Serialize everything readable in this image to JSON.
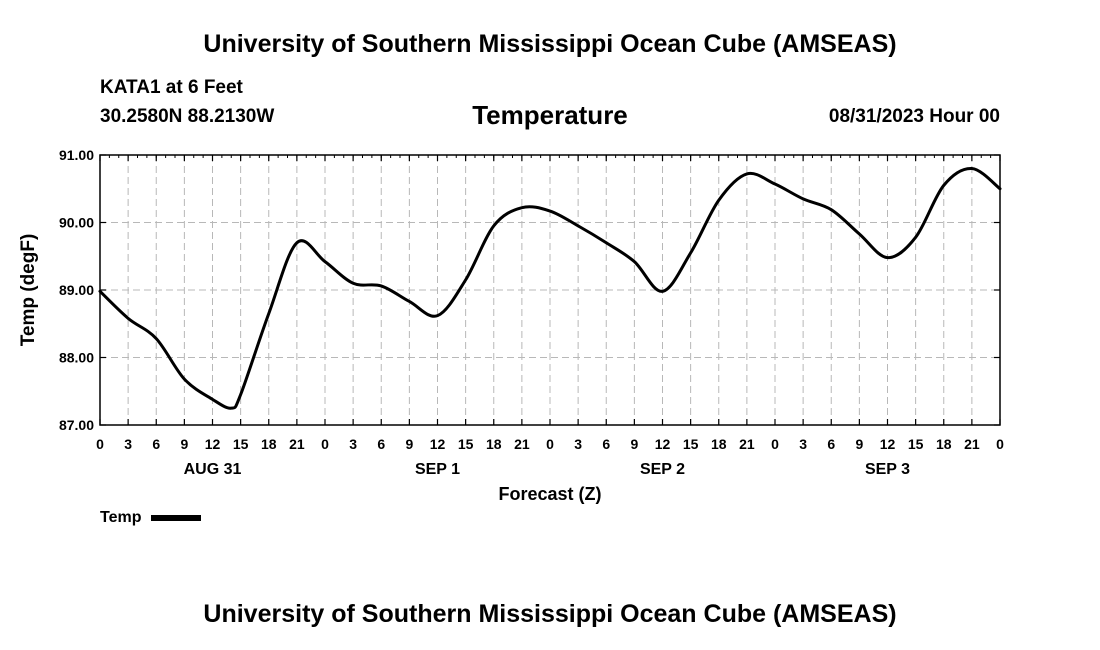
{
  "header": {
    "title": "University of Southern Mississippi Ocean Cube (AMSEAS)",
    "station": "KATA1 at 6 Feet",
    "coordinates": "30.2580N  88.2130W",
    "variable": "Temperature",
    "issue_time": "08/31/2023 Hour 00"
  },
  "footer": {
    "title": "University of Southern Mississippi Ocean Cube (AMSEAS)"
  },
  "chart_data": {
    "type": "line",
    "title": "Temperature",
    "xlabel": "Forecast (Z)",
    "ylabel": "Temp (degF)",
    "xlim": [
      0,
      96
    ],
    "ylim": [
      87,
      91
    ],
    "grid": true,
    "legend_position": "bottom-left",
    "x_tick_labels": [
      "0",
      "3",
      "6",
      "9",
      "12",
      "15",
      "18",
      "21",
      "0",
      "3",
      "6",
      "9",
      "12",
      "15",
      "18",
      "21",
      "0",
      "3",
      "6",
      "9",
      "12",
      "15",
      "18",
      "21",
      "0",
      "3",
      "6",
      "9",
      "12",
      "15",
      "18",
      "21",
      "0"
    ],
    "y_tick_labels": [
      "87.00",
      "88.00",
      "89.00",
      "90.00",
      "91.00"
    ],
    "y_ticks": [
      87,
      88,
      89,
      90,
      91
    ],
    "day_labels": [
      {
        "label": "AUG 31",
        "hour": 12
      },
      {
        "label": "SEP 1",
        "hour": 36
      },
      {
        "label": "SEP 2",
        "hour": 60
      },
      {
        "label": "SEP 3",
        "hour": 84
      }
    ],
    "series": [
      {
        "name": "Temp",
        "color": "#000000",
        "x": [
          0,
          3,
          6,
          9,
          12,
          14,
          15,
          18,
          21,
          24,
          27,
          30,
          33,
          36,
          39,
          42,
          45,
          48,
          51,
          54,
          57,
          60,
          63,
          66,
          69,
          72,
          75,
          78,
          81,
          84,
          87,
          90,
          93,
          96
        ],
        "values": [
          88.98,
          88.58,
          88.28,
          87.68,
          87.38,
          87.25,
          87.45,
          88.65,
          89.7,
          89.42,
          89.1,
          89.06,
          88.83,
          88.62,
          89.15,
          89.95,
          90.22,
          90.17,
          89.95,
          89.7,
          89.42,
          88.98,
          89.55,
          90.33,
          90.72,
          90.57,
          90.35,
          90.19,
          89.83,
          89.48,
          89.78,
          90.55,
          90.8,
          90.5
        ]
      }
    ]
  }
}
